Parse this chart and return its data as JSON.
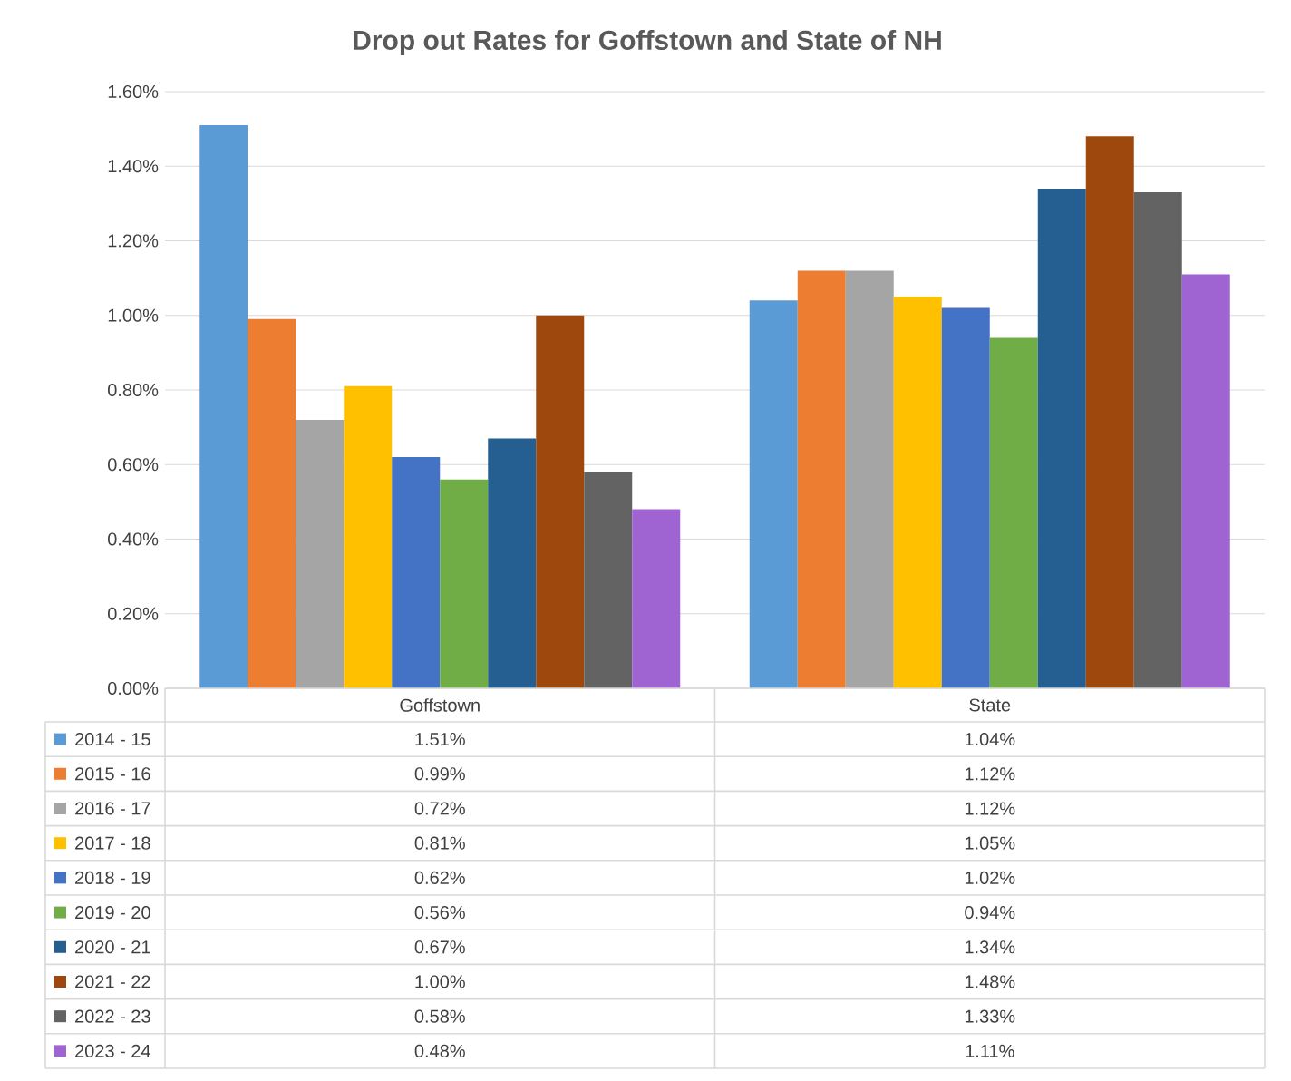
{
  "chart_data": {
    "type": "bar",
    "title": "Drop out Rates for Goffstown and State of NH",
    "categories": [
      "Goffstown",
      "State"
    ],
    "series": [
      {
        "name": "2014 - 15",
        "color": "#5b9bd5",
        "values": [
          1.51,
          1.04
        ],
        "value_labels": [
          "1.51%",
          "1.04%"
        ]
      },
      {
        "name": "2015 - 16",
        "color": "#ed7d31",
        "values": [
          0.99,
          1.12
        ],
        "value_labels": [
          "0.99%",
          "1.12%"
        ]
      },
      {
        "name": "2016 - 17",
        "color": "#a5a5a5",
        "values": [
          0.72,
          1.12
        ],
        "value_labels": [
          "0.72%",
          "1.12%"
        ]
      },
      {
        "name": "2017 - 18",
        "color": "#ffc000",
        "values": [
          0.81,
          1.05
        ],
        "value_labels": [
          "0.81%",
          "1.05%"
        ]
      },
      {
        "name": "2018 - 19",
        "color": "#4472c4",
        "values": [
          0.62,
          1.02
        ],
        "value_labels": [
          "0.62%",
          "1.02%"
        ]
      },
      {
        "name": "2019 - 20",
        "color": "#70ad47",
        "values": [
          0.56,
          0.94
        ],
        "value_labels": [
          "0.56%",
          "0.94%"
        ]
      },
      {
        "name": "2020 - 21",
        "color": "#255e91",
        "values": [
          0.67,
          1.34
        ],
        "value_labels": [
          "0.67%",
          "1.34%"
        ]
      },
      {
        "name": "2021 - 22",
        "color": "#9e480e",
        "values": [
          1.0,
          1.48
        ],
        "value_labels": [
          "1.00%",
          "1.48%"
        ]
      },
      {
        "name": "2022 - 23",
        "color": "#636363",
        "values": [
          0.58,
          1.33
        ],
        "value_labels": [
          "0.58%",
          "1.33%"
        ]
      },
      {
        "name": "2023 - 24",
        "color": "#a064d2",
        "values": [
          0.48,
          1.11
        ],
        "value_labels": [
          "0.48%",
          "1.11%"
        ]
      }
    ],
    "ylim": [
      0,
      1.6
    ],
    "yticks": [
      {
        "value": 0,
        "label": "0.00%"
      },
      {
        "value": 0.2,
        "label": "0.20%"
      },
      {
        "value": 0.4,
        "label": "0.40%"
      },
      {
        "value": 0.6,
        "label": "0.60%"
      },
      {
        "value": 0.8,
        "label": "0.80%"
      },
      {
        "value": 1.0,
        "label": "1.00%"
      },
      {
        "value": 1.2,
        "label": "1.20%"
      },
      {
        "value": 1.4,
        "label": "1.40%"
      },
      {
        "value": 1.6,
        "label": "1.60%"
      }
    ],
    "grid": "y",
    "legend": "bottom"
  }
}
